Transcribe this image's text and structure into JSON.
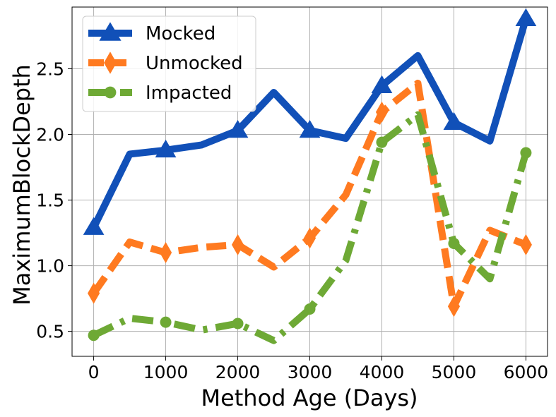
{
  "chart_data": {
    "type": "line",
    "title": "",
    "xlabel": "Method Age (Days)",
    "ylabel": "MaximumBlockDepth",
    "xlim": [
      -300,
      6300
    ],
    "ylim": [
      0.31,
      2.97
    ],
    "xticks": [
      0,
      1000,
      2000,
      3000,
      4000,
      5000,
      6000
    ],
    "yticks": [
      0.5,
      1.0,
      1.5,
      2.0,
      2.5
    ],
    "xtick_labels": [
      "0",
      "1000",
      "2000",
      "3000",
      "4000",
      "5000",
      "6000"
    ],
    "ytick_labels": [
      "0.5",
      "1.0",
      "1.5",
      "2.0",
      "2.5"
    ],
    "grid": true,
    "legend_position": "upper-left",
    "x": [
      0,
      500,
      1000,
      1500,
      2000,
      2500,
      3000,
      3500,
      4000,
      4500,
      5000,
      5500,
      6000
    ],
    "series": [
      {
        "name": "Mocked",
        "color": "#1150b8",
        "marker": "triangle",
        "linestyle": "solid",
        "values": [
          1.29,
          1.85,
          1.88,
          1.92,
          2.03,
          2.32,
          2.03,
          1.97,
          2.37,
          2.6,
          2.09,
          1.95,
          2.88
        ]
      },
      {
        "name": "Unmocked",
        "color": "#ff7a20",
        "marker": "diamond",
        "linestyle": "dashed",
        "values": [
          0.79,
          1.18,
          1.1,
          1.14,
          1.16,
          0.99,
          1.21,
          1.54,
          2.17,
          2.39,
          0.69,
          1.27,
          1.16
        ]
      },
      {
        "name": "Impacted",
        "color": "#6ea935",
        "marker": "circle",
        "linestyle": "dashdot",
        "values": [
          0.47,
          0.6,
          0.57,
          0.51,
          0.56,
          0.43,
          0.67,
          1.04,
          1.94,
          2.15,
          1.17,
          0.9,
          1.86
        ]
      }
    ]
  }
}
